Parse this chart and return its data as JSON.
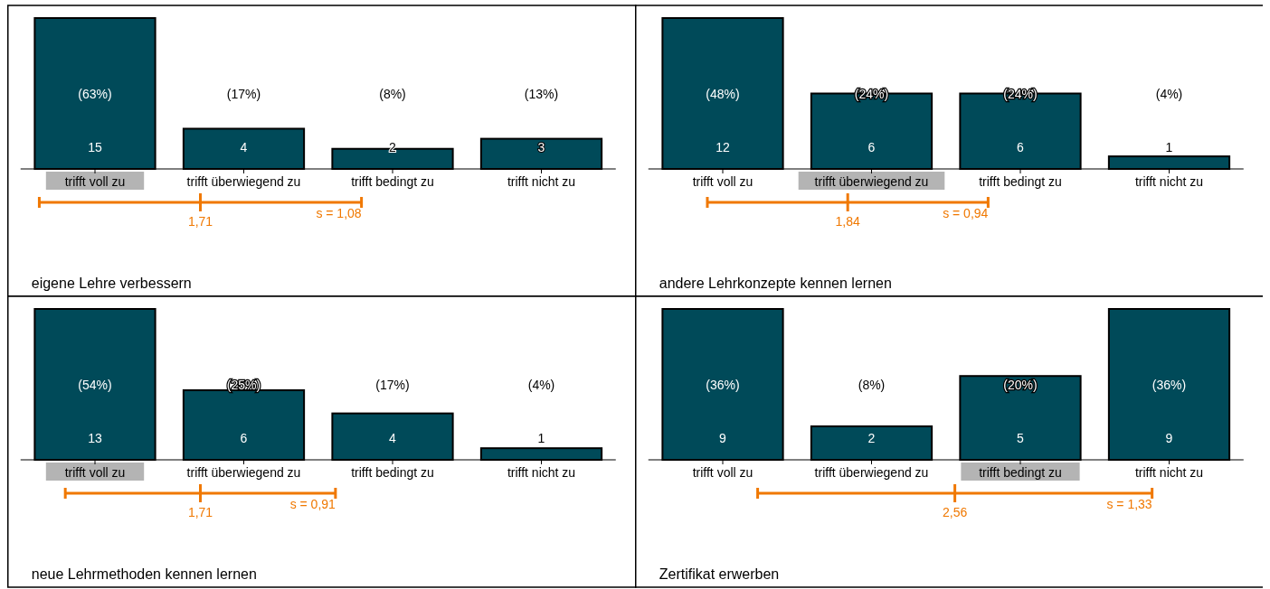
{
  "chart_data": [
    {
      "type": "bar",
      "title": "eigene Lehre verbessern",
      "categories": [
        "trifft voll zu",
        "trifft überwiegend zu",
        "trifft bedingt zu",
        "trifft nicht zu"
      ],
      "values": [
        15,
        4,
        2,
        3
      ],
      "color": "#004a59",
      "data_labels": true,
      "annotations": [
        "(63%)",
        "(17%)",
        "(8%)",
        "(13%)",
        "1,71",
        "s = 1,08"
      ]
    },
    {
      "type": "bar",
      "title": "andere Lehrkonzepte kennen lernen",
      "categories": [
        "trifft voll zu",
        "trifft überwiegend zu",
        "trifft bedingt zu",
        "trifft nicht zu"
      ],
      "values": [
        12,
        6,
        6,
        1
      ],
      "color": "#004a59",
      "data_labels": true,
      "annotations": [
        "(48%)",
        "(24%)",
        "(24%)",
        "(4%)",
        "1,84",
        "s = 0,94"
      ]
    },
    {
      "type": "bar",
      "title": "neue Lehrmethoden kennen lernen",
      "categories": [
        "trifft voll zu",
        "trifft überwiegend zu",
        "trifft bedingt zu",
        "trifft nicht zu"
      ],
      "values": [
        13,
        6,
        4,
        1
      ],
      "color": "#004a59",
      "data_labels": true,
      "annotations": [
        "(54%)",
        "(25%)",
        "(17%)",
        "(4%)",
        "1,71",
        "s = 0,91"
      ]
    },
    {
      "type": "bar",
      "title": "Zertifikat erwerben",
      "categories": [
        "trifft voll zu",
        "trifft überwiegend zu",
        "trifft bedingt zu",
        "trifft nicht zu"
      ],
      "values": [
        9,
        2,
        5,
        9
      ],
      "color": "#004a59",
      "data_labels": true,
      "annotations": [
        "(36%)",
        "(8%)",
        "(20%)",
        "(36%)",
        "2,56",
        "s = 1,33"
      ]
    }
  ]
}
